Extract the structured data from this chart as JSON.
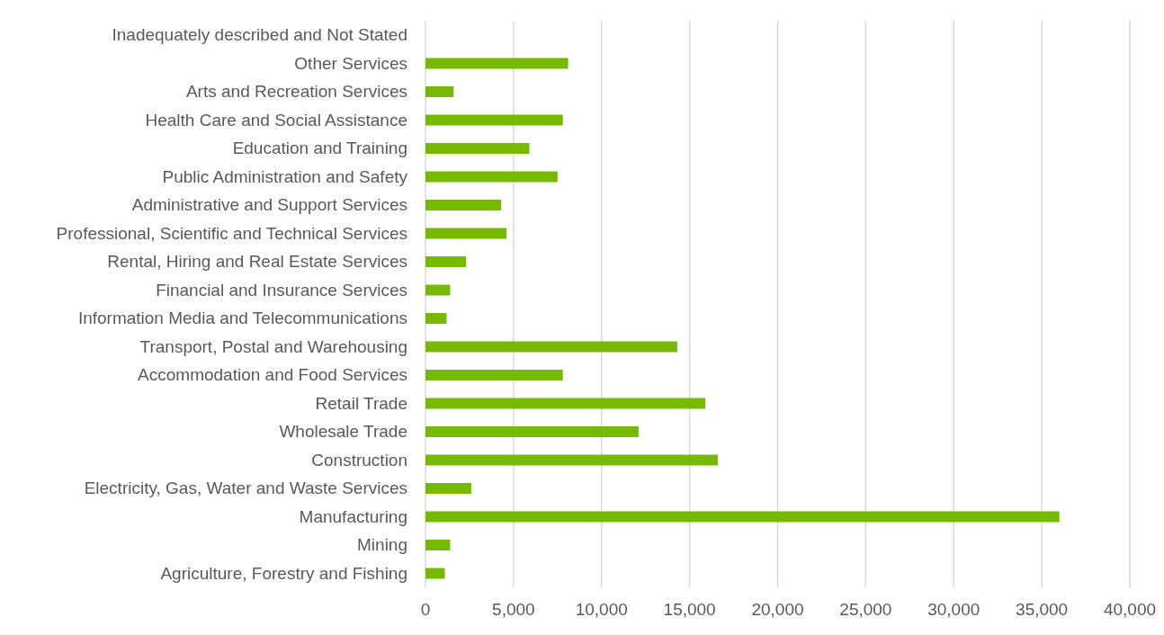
{
  "chart_data": {
    "type": "bar",
    "orientation": "horizontal",
    "categories": [
      "Inadequately described and Not Stated",
      "Other Services",
      "Arts and Recreation Services",
      "Health Care and Social Assistance",
      "Education and Training",
      "Public Administration and Safety",
      "Administrative and Support Services",
      "Professional, Scientific and Technical Services",
      "Rental, Hiring and Real Estate Services",
      "Financial and Insurance Services",
      "Information Media and Telecommunications",
      "Transport, Postal and Warehousing",
      "Accommodation and Food Services",
      "Retail Trade",
      "Wholesale Trade",
      "Construction",
      "Electricity, Gas, Water and Waste Services",
      "Manufacturing",
      "Mining",
      "Agriculture, Forestry and Fishing"
    ],
    "values": [
      null,
      8100,
      1600,
      7800,
      5900,
      7500,
      4300,
      4600,
      2300,
      1400,
      1200,
      14300,
      7800,
      15900,
      12100,
      16600,
      2600,
      36000,
      1400,
      1100
    ],
    "color": "#77b900",
    "xlim": [
      0,
      40000
    ],
    "xticks": [
      {
        "value": 0,
        "label": "0"
      },
      {
        "value": 5000,
        "label": "5,000"
      },
      {
        "value": 10000,
        "label": "10,000"
      },
      {
        "value": 15000,
        "label": "15,000"
      },
      {
        "value": 20000,
        "label": "20,000"
      },
      {
        "value": 25000,
        "label": "25,000"
      },
      {
        "value": 30000,
        "label": "30,000"
      },
      {
        "value": 35000,
        "label": "35,000"
      },
      {
        "value": 40000,
        "label": "40,000"
      }
    ],
    "grid": "x"
  }
}
